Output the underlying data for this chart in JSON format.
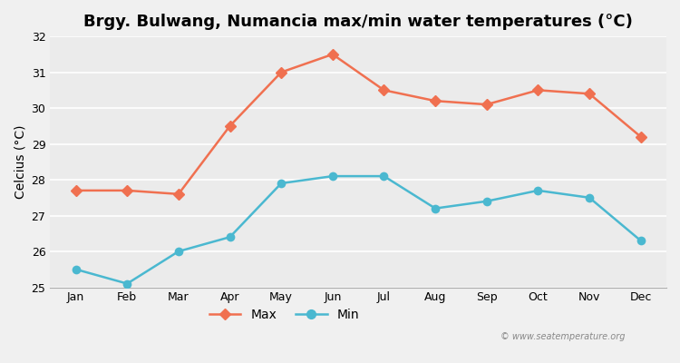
{
  "title": "Brgy. Bulwang, Numancia max/min water temperatures (°C)",
  "ylabel": "Celcius (°C)",
  "months": [
    "Jan",
    "Feb",
    "Mar",
    "Apr",
    "May",
    "Jun",
    "Jul",
    "Aug",
    "Sep",
    "Oct",
    "Nov",
    "Dec"
  ],
  "max_temps": [
    27.7,
    27.7,
    27.6,
    29.5,
    31.0,
    31.5,
    30.5,
    30.2,
    30.1,
    30.5,
    30.4,
    29.2
  ],
  "min_temps": [
    25.5,
    25.1,
    26.0,
    26.4,
    27.9,
    28.1,
    28.1,
    27.2,
    27.4,
    27.7,
    27.5,
    26.3
  ],
  "max_color": "#f07050",
  "min_color": "#4ab8d0",
  "bg_color": "#f0f0f0",
  "plot_bg_color": "#ebebeb",
  "grid_color": "#ffffff",
  "ylim": [
    25.0,
    32.0
  ],
  "yticks": [
    25,
    26,
    27,
    28,
    29,
    30,
    31,
    32
  ],
  "watermark": "© www.seatemperature.org",
  "legend_max": "Max",
  "legend_min": "Min",
  "title_fontsize": 13,
  "axis_fontsize": 10,
  "tick_fontsize": 9
}
